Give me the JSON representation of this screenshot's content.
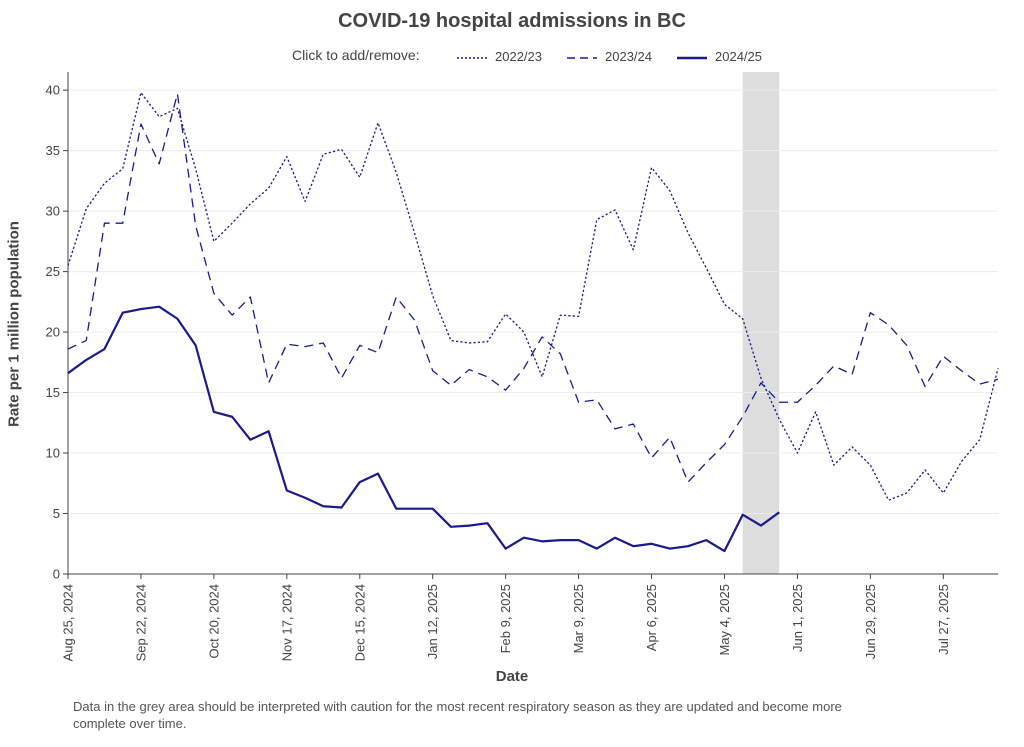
{
  "chart_data": {
    "type": "line",
    "title": "COVID-19 hospital admissions in BC",
    "xlabel": "Date",
    "ylabel": "Rate per 1 million population",
    "legend_prompt": "Click to add/remove:",
    "legend_placement": "top",
    "ylim": [
      0,
      41.5
    ],
    "yticks": [
      0,
      5,
      10,
      15,
      20,
      25,
      30,
      35,
      40
    ],
    "grid": true,
    "x_weeks": [
      "Aug 25",
      "Sep 1",
      "Sep 8",
      "Sep 15",
      "Sep 22",
      "Sep 29",
      "Oct 6",
      "Oct 13",
      "Oct 20",
      "Oct 27",
      "Nov 3",
      "Nov 10",
      "Nov 17",
      "Nov 24",
      "Dec 1",
      "Dec 8",
      "Dec 15",
      "Dec 22",
      "Dec 29",
      "Jan 5",
      "Jan 12",
      "Jan 19",
      "Jan 26",
      "Feb 2",
      "Feb 9",
      "Feb 16",
      "Feb 23",
      "Mar 2",
      "Mar 9",
      "Mar 16",
      "Mar 23",
      "Mar 30",
      "Apr 6",
      "Apr 13",
      "Apr 20",
      "Apr 27",
      "May 4",
      "May 11",
      "May 18",
      "May 25",
      "Jun 1",
      "Jun 8",
      "Jun 15",
      "Jun 22",
      "Jun 29",
      "Jul 6",
      "Jul 13",
      "Jul 20",
      "Jul 27",
      "Aug 3",
      "Aug 10",
      "Aug 17"
    ],
    "xtick_labels": [
      "Aug 25, 2024",
      "Sep 22, 2024",
      "Oct 20, 2024",
      "Nov 17, 2024",
      "Dec 15, 2024",
      "Jan 12, 2025",
      "Feb 9, 2025",
      "Mar 9, 2025",
      "Apr 6, 2025",
      "May 4, 2025",
      "Jun 1, 2025",
      "Jun 29, 2025",
      "Jul 27, 2025"
    ],
    "xtick_weeks": [
      0,
      4,
      8,
      12,
      16,
      20,
      24,
      28,
      32,
      36,
      40,
      44,
      48
    ],
    "shaded_region": {
      "from_week": 37,
      "to_week": 39,
      "color": "#dddddd"
    },
    "series": [
      {
        "name": "2022/23",
        "style": "dotted",
        "color": "#1a1a8c",
        "values": [
          25.5,
          30.2,
          32.3,
          33.5,
          39.8,
          37.8,
          38.5,
          33.5,
          27.5,
          29.0,
          30.6,
          31.9,
          34.5,
          30.8,
          34.7,
          35.1,
          32.8,
          37.3,
          33.2,
          28.2,
          23.0,
          19.3,
          19.1,
          19.2,
          21.5,
          20.0,
          16.3,
          21.4,
          21.3,
          29.3,
          30.1,
          26.8,
          33.6,
          31.7,
          28.2,
          25.3,
          22.3,
          21.1,
          16.2,
          12.8,
          10.0,
          13.4,
          9.0,
          10.5,
          9.0,
          6.1,
          6.7,
          8.6,
          6.7,
          9.3,
          11.1,
          17.0
        ]
      },
      {
        "name": "2023/24",
        "style": "dashed",
        "color": "#1a1a8c",
        "values": [
          18.6,
          19.3,
          29.0,
          29.0,
          37.2,
          33.9,
          39.7,
          28.8,
          23.2,
          21.4,
          22.9,
          15.8,
          19.0,
          18.8,
          19.1,
          16.2,
          18.9,
          18.3,
          22.9,
          21.0,
          16.8,
          15.6,
          16.9,
          16.3,
          15.2,
          17.0,
          19.6,
          18.2,
          14.2,
          14.4,
          12.0,
          12.4,
          9.6,
          11.3,
          7.6,
          9.2,
          10.7,
          13.0,
          15.8,
          14.2,
          14.2,
          15.6,
          17.2,
          16.5,
          21.6,
          20.6,
          18.9,
          15.5,
          18.0,
          16.8,
          15.7,
          16.1
        ]
      },
      {
        "name": "2024/25",
        "style": "solid",
        "color": "#1a1a8c",
        "values": [
          16.6,
          17.7,
          18.6,
          21.6,
          21.9,
          22.1,
          21.1,
          18.9,
          13.4,
          13.0,
          11.1,
          11.8,
          6.9,
          6.3,
          5.6,
          5.5,
          7.6,
          8.3,
          5.4,
          5.4,
          5.4,
          3.9,
          4.0,
          4.2,
          2.1,
          3.0,
          2.7,
          2.8,
          2.8,
          2.1,
          3.0,
          2.3,
          2.5,
          2.1,
          2.3,
          2.8,
          1.9,
          4.9,
          4.0,
          5.1
        ]
      }
    ],
    "footnote": "Data in the grey area should be interpreted with caution for the most recent respiratory season as they are updated and become more complete over time."
  }
}
